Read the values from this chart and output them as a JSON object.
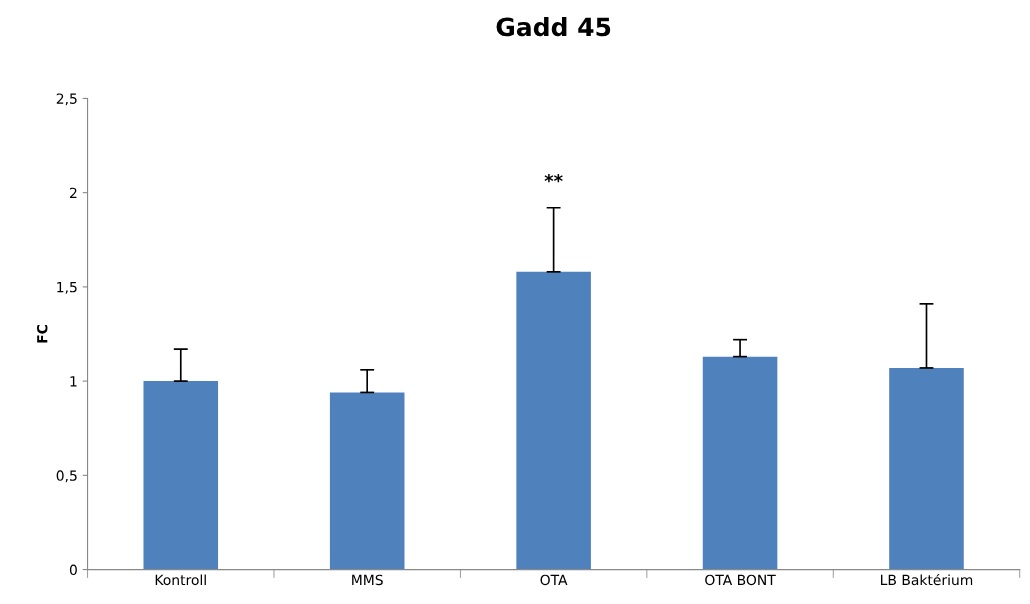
{
  "chart_data": {
    "type": "bar",
    "title": "Gadd 45",
    "ylabel": "FC",
    "categories": [
      "Kontroll",
      "MMS",
      "OTA",
      "OTA BONT",
      "LB Baktérium"
    ],
    "values": [
      1.0,
      0.94,
      1.58,
      1.13,
      1.07
    ],
    "errors": [
      [
        1.0,
        1.17
      ],
      [
        0.94,
        1.06
      ],
      [
        1.58,
        1.92
      ],
      [
        1.13,
        1.22
      ],
      [
        1.07,
        1.41
      ]
    ],
    "color": "#4f81bd",
    "ylim": [
      0,
      2.5
    ],
    "yticks": [
      0,
      {
        "value": 0.5,
        "label": "0,5"
      },
      1,
      {
        "value": 1.5,
        "label": "1,5"
      },
      2,
      {
        "value": 2.5,
        "label": "2,5"
      }
    ],
    "annotations": [
      {
        "text": "**",
        "x": "OTA",
        "y": 1.92
      }
    ],
    "grid": false,
    "legend": false
  }
}
